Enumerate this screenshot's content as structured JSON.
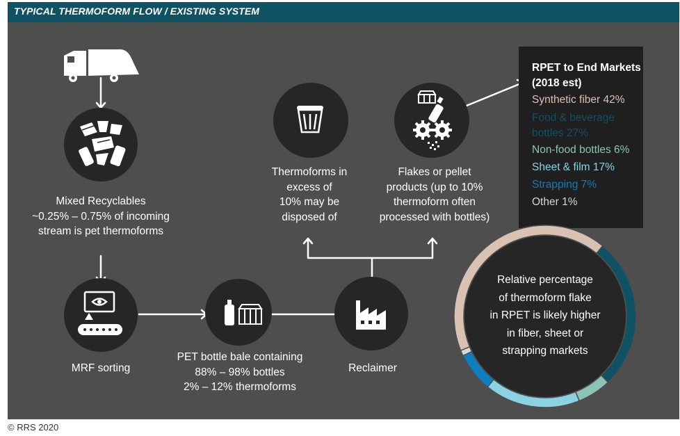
{
  "header": {
    "title": "TYPICAL THERMOFORM FLOW / EXISTING SYSTEM"
  },
  "nodes": {
    "mixed_recyclables": [
      "Mixed Recyclables",
      "~0.25% – 0.75% of incoming",
      "stream is pet thermoforms"
    ],
    "mrf": [
      "MRF sorting"
    ],
    "bale": [
      "PET bottle bale containing",
      "88% – 98% bottles",
      "2% – 12% thermoforms"
    ],
    "reclaimer": [
      "Reclaimer"
    ],
    "disposed": [
      "Thermoforms in",
      "excess of",
      "10% may be",
      "disposed of"
    ],
    "flakes": [
      "Flakes or pellet",
      "products (up to 10%",
      "thermoform often",
      "processed with bottles)"
    ]
  },
  "legend": {
    "title_lines": [
      "RPET to End Markets",
      "(2018 est)"
    ],
    "items": [
      {
        "lines": [
          "Synthetic fiber 42%"
        ],
        "color": "#d9c2b1"
      },
      {
        "lines": [
          "Food & beverage",
          "bottles 27%"
        ],
        "color": "#0e5264"
      },
      {
        "lines": [
          "Non-food bottles 6%"
        ],
        "color": "#8cc4b6"
      },
      {
        "lines": [
          "Sheet & film 17%"
        ],
        "color": "#8ad2e4"
      },
      {
        "lines": [
          "Strapping 7%"
        ],
        "color": "#0b7fc0"
      },
      {
        "lines": [
          "Other 1%"
        ],
        "color": "#d6d6d6"
      }
    ]
  },
  "chart_data": {
    "type": "pie",
    "labels": [
      "Synthetic fiber",
      "Food & beverage bottles",
      "Non-food bottles",
      "Sheet & film",
      "Strapping",
      "Other"
    ],
    "values": [
      42,
      27,
      6,
      17,
      7,
      1
    ],
    "colors": [
      "#d9c2b1",
      "#0e5264",
      "#8cc4b6",
      "#8ad2e4",
      "#0b7fc0",
      "#d6d6d6"
    ]
  },
  "donut_note": [
    "Relative percentage",
    "of thermoform flake",
    "in RPET is likely higher",
    "in fiber, sheet or",
    "strapping markets"
  ],
  "footer": {
    "copyright": "© RRS 2020"
  }
}
